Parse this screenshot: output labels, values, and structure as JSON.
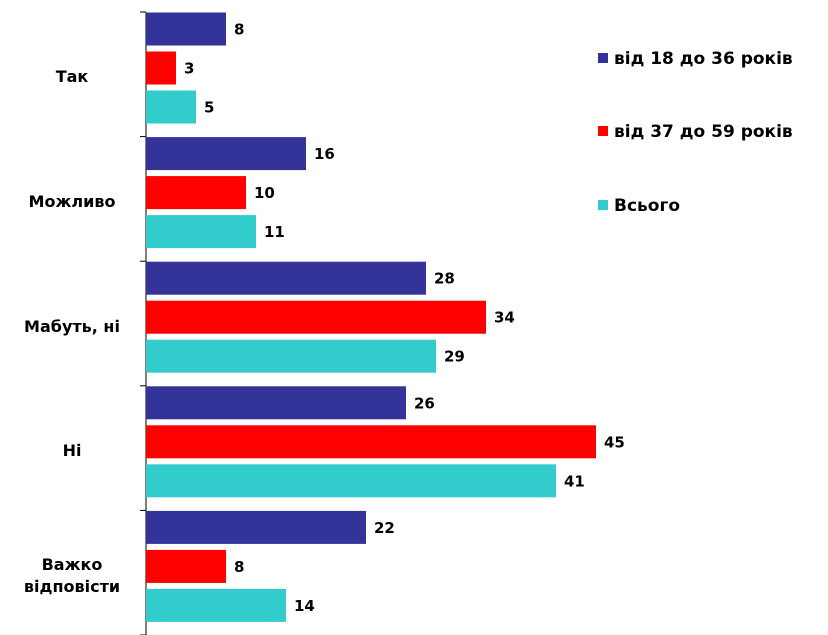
{
  "chart_data": {
    "type": "bar",
    "orientation": "horizontal",
    "categories": [
      "Так",
      "Можливо",
      "Мабуть, ні",
      "Ні",
      "Важко відповісти"
    ],
    "series": [
      {
        "name": "від 18 до 36 років",
        "color": "#333399",
        "values": [
          8,
          16,
          28,
          26,
          22
        ]
      },
      {
        "name": "від 37 до 59 років",
        "color": "#ff0000",
        "values": [
          3,
          10,
          34,
          45,
          8
        ]
      },
      {
        "name": "Всього",
        "color": "#33cccc",
        "values": [
          5,
          11,
          29,
          41,
          14
        ]
      }
    ],
    "xlim": [
      0,
      68
    ],
    "legend": "right"
  }
}
